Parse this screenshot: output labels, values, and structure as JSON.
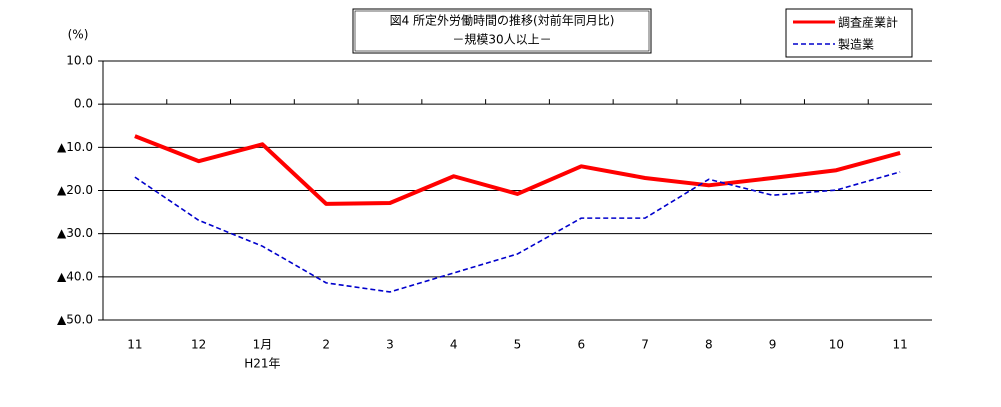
{
  "chart_data": {
    "type": "line",
    "title": "図4  所定外労働時間の推移(対前年同月比)",
    "subtitle": "－規模30人以上－",
    "y_label": "(%)",
    "categories": [
      "11",
      "12",
      "1月",
      "2",
      "3",
      "4",
      "5",
      "6",
      "7",
      "8",
      "9",
      "10",
      "11"
    ],
    "year_label": "H21年",
    "series": [
      {
        "name": "調査産業計",
        "color": "#ff0000",
        "dashed": false,
        "values": [
          -7.4,
          -13.2,
          -9.3,
          -23.1,
          -22.9,
          -16.7,
          -20.8,
          -14.4,
          -17.1,
          -18.8,
          -17.1,
          -15.3,
          -11.3
        ]
      },
      {
        "name": "製造業",
        "color": "#0000cc",
        "dashed": true,
        "values": [
          -16.9,
          -26.9,
          -32.9,
          -41.4,
          -43.5,
          -39.1,
          -34.7,
          -26.4,
          -26.4,
          -17.4,
          -21.1,
          -19.9,
          -15.7
        ]
      }
    ],
    "ylim": [
      -50,
      10
    ],
    "yticks": [
      {
        "value": 10,
        "label": "10.0"
      },
      {
        "value": 0,
        "label": "0.0"
      },
      {
        "value": -10,
        "label": "▲10.0"
      },
      {
        "value": -20,
        "label": "▲20.0"
      },
      {
        "value": -30,
        "label": "▲30.0"
      },
      {
        "value": -40,
        "label": "▲40.0"
      },
      {
        "value": -50,
        "label": "▲50.0"
      }
    ],
    "grid": true,
    "legend": "upper right"
  }
}
